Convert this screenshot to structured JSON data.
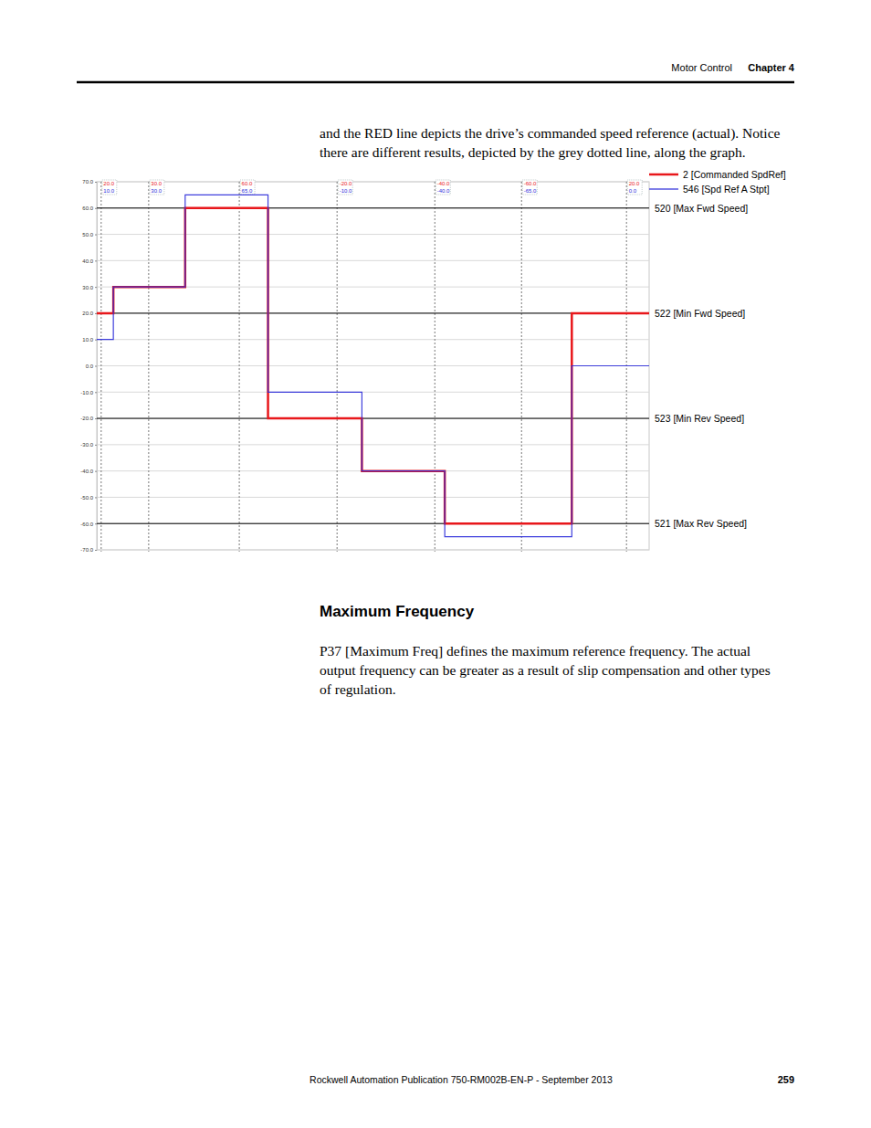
{
  "header": {
    "section": "Motor Control",
    "chapter": "Chapter 4"
  },
  "intro": [
    "and the RED line depicts the drive’s commanded speed reference (actual). Notice",
    "there are different results, depicted by the grey dotted line, along the graph."
  ],
  "chart_data": {
    "type": "line",
    "line_style": "step",
    "grid": true,
    "legend": "upper right",
    "tick_labels": "y",
    "xlim": [
      0,
      100
    ],
    "ylim": [
      -70,
      70
    ],
    "yticks": [
      {
        "value": 70,
        "label": "70.0"
      },
      {
        "value": 60,
        "label": "60.0"
      },
      {
        "value": 50,
        "label": "50.0"
      },
      {
        "value": 40,
        "label": "40.0"
      },
      {
        "value": 30,
        "label": "30.0"
      },
      {
        "value": 20,
        "label": "20.0"
      },
      {
        "value": 10,
        "label": "10.0"
      },
      {
        "value": 0,
        "label": "0.0"
      },
      {
        "value": -10,
        "label": "-10.0"
      },
      {
        "value": -20,
        "label": "-20.0"
      },
      {
        "value": -30,
        "label": "-30.0"
      },
      {
        "value": -40,
        "label": "-40.0"
      },
      {
        "value": -50,
        "label": "-50.0"
      },
      {
        "value": -60,
        "label": "-60.0"
      },
      {
        "value": -70,
        "label": "-70.0"
      }
    ],
    "x": [
      0,
      3,
      16,
      31,
      48,
      63,
      86,
      100
    ],
    "series": [
      {
        "name": "2 [Commanded SpdRef]",
        "color": "#e8171b",
        "values": [
          20,
          30,
          60,
          -20,
          -40,
          -60,
          20,
          20
        ]
      },
      {
        "name": "546 [Spd Ref A Stpt]",
        "color": "#2b2bd9",
        "values": [
          10,
          30,
          65,
          -10,
          -40,
          -65,
          0,
          0
        ]
      }
    ],
    "reference_lines": [
      {
        "value": 60,
        "label": "520 [Max Fwd Speed]"
      },
      {
        "value": 20,
        "label": "522 [Min Fwd Speed]"
      },
      {
        "value": -20,
        "label": "523 [Min Rev Speed]"
      },
      {
        "value": -60,
        "label": "521 [Max Rev Speed]"
      }
    ],
    "cursors": [
      {
        "x": 0.8,
        "labels": [
          "20.0",
          "10.0"
        ]
      },
      {
        "x": 9.4,
        "labels": [
          "30.0",
          "30.0"
        ]
      },
      {
        "x": 25.8,
        "labels": [
          "60.0",
          "65.0"
        ]
      },
      {
        "x": 43.5,
        "labels": [
          "-20.0",
          "-10.0"
        ]
      },
      {
        "x": 61.2,
        "labels": [
          "-40.0",
          "-40.0"
        ]
      },
      {
        "x": 76.9,
        "labels": [
          "-60.0",
          "-65.0"
        ]
      },
      {
        "x": 95.9,
        "labels": [
          "20.0",
          "0.0"
        ]
      }
    ]
  },
  "section": {
    "heading": "Maximum Frequency",
    "paragraph": [
      "P37 [Maximum Freq] defines the maximum reference frequency. The actual",
      "output frequency can be greater as a result of slip compensation and other types",
      "of regulation."
    ]
  },
  "footer": {
    "publication": "Rockwell Automation Publication 750-RM002B-EN-P - September 2013",
    "page": "259"
  }
}
